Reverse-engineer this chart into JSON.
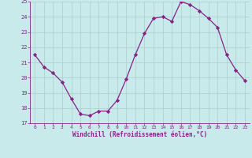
{
  "x": [
    0,
    1,
    2,
    3,
    4,
    5,
    6,
    7,
    8,
    9,
    10,
    11,
    12,
    13,
    14,
    15,
    16,
    17,
    18,
    19,
    20,
    21,
    22,
    23
  ],
  "y": [
    21.5,
    20.7,
    20.3,
    19.7,
    18.6,
    17.6,
    17.5,
    17.8,
    17.8,
    18.5,
    19.9,
    21.5,
    22.9,
    23.9,
    24.0,
    23.7,
    25.0,
    24.8,
    24.4,
    23.9,
    23.3,
    21.5,
    20.5,
    19.8
  ],
  "line_color": "#882288",
  "marker": "D",
  "marker_size": 2.2,
  "bg_color": "#c8eaea",
  "grid_color": "#aacccc",
  "xlabel": "Windchill (Refroidissement éolien,°C)",
  "xlabel_color": "#882288",
  "tick_color": "#882288",
  "ylim": [
    17,
    25
  ],
  "xlim": [
    -0.5,
    23.5
  ],
  "yticks": [
    17,
    18,
    19,
    20,
    21,
    22,
    23,
    24,
    25
  ],
  "xticks": [
    0,
    1,
    2,
    3,
    4,
    5,
    6,
    7,
    8,
    9,
    10,
    11,
    12,
    13,
    14,
    15,
    16,
    17,
    18,
    19,
    20,
    21,
    22,
    23
  ]
}
